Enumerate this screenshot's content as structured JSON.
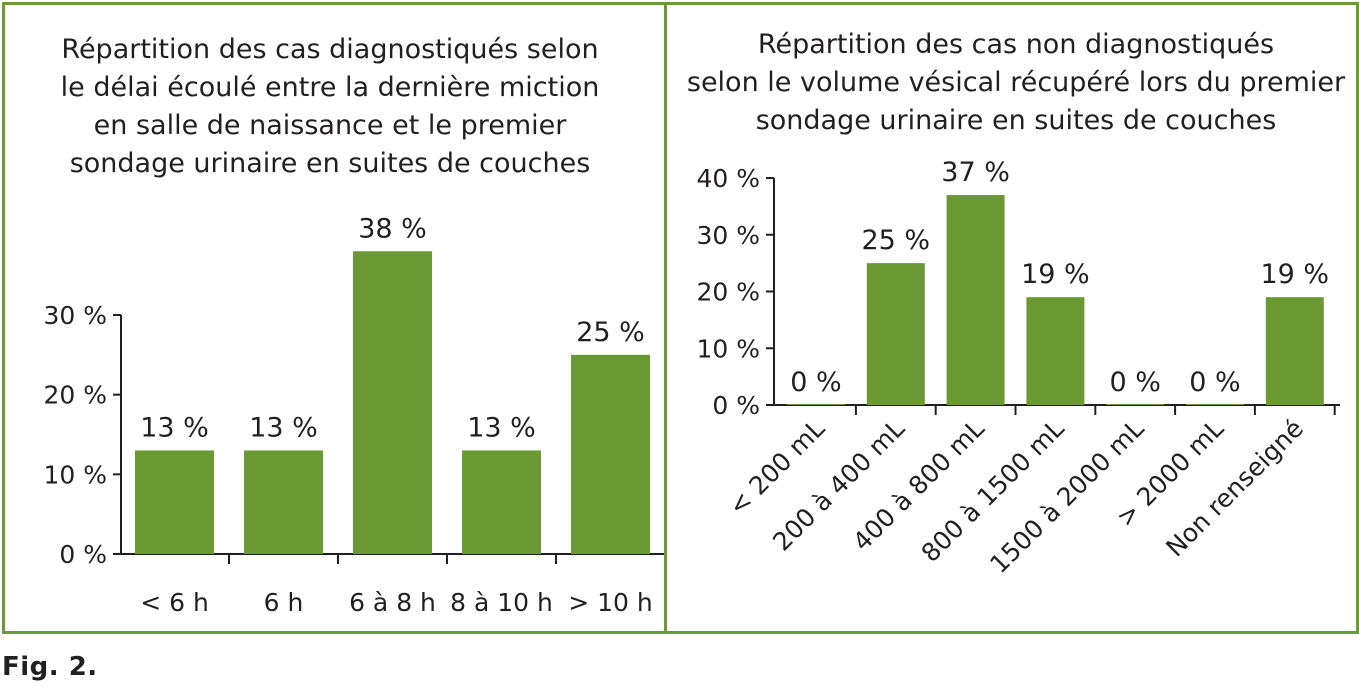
{
  "colors": {
    "bar": "#6b9a35",
    "border": "#6b9a35",
    "axis": "#231f20",
    "text": "#231f20"
  },
  "figure_caption": "Fig. 2.",
  "chart_data": [
    {
      "type": "bar",
      "title_lines": [
        "Répartition des cas diagnostiqués selon",
        "le délai écoulé entre la dernière miction",
        "en salle de naissance et le premier",
        "sondage urinaire en suites de couches"
      ],
      "categories": [
        "< 6 h",
        "6 h",
        "6 à 8 h",
        "8 à 10 h",
        "> 10 h"
      ],
      "values": [
        13,
        13,
        38,
        13,
        25
      ],
      "value_labels": [
        "13 %",
        "13 %",
        "38 %",
        "13 %",
        "25 %"
      ],
      "yticks": [
        0,
        10,
        20,
        30
      ],
      "ytick_labels": [
        "0 %",
        "10 %",
        "20 %",
        "30 %"
      ],
      "ylim": [
        0,
        30
      ],
      "xlabel": "",
      "ylabel": "",
      "grid": false,
      "legend": "none",
      "category_label_rotation": "none"
    },
    {
      "type": "bar",
      "title_lines": [
        "Répartition des cas non diagnostiqués",
        "selon le volume vésical récupéré lors du premier",
        "sondage urinaire en suites de couches"
      ],
      "categories": [
        "< 200 mL",
        "200 à 400 mL",
        "400 à 800 mL",
        "800 à 1500 mL",
        "1500 à 2000 mL",
        "> 2000 mL",
        "Non renseigné"
      ],
      "values": [
        0,
        25,
        37,
        19,
        0,
        0,
        19
      ],
      "value_labels": [
        "0 %",
        "25 %",
        "37 %",
        "19 %",
        "0 %",
        "0 %",
        "19 %"
      ],
      "yticks": [
        0,
        10,
        20,
        30,
        40
      ],
      "ytick_labels": [
        "0 %",
        "10 %",
        "20 %",
        "30 %",
        "40 %"
      ],
      "ylim": [
        0,
        40
      ],
      "xlabel": "",
      "ylabel": "",
      "grid": false,
      "legend": "none",
      "category_label_rotation": "rotated -45°"
    }
  ]
}
